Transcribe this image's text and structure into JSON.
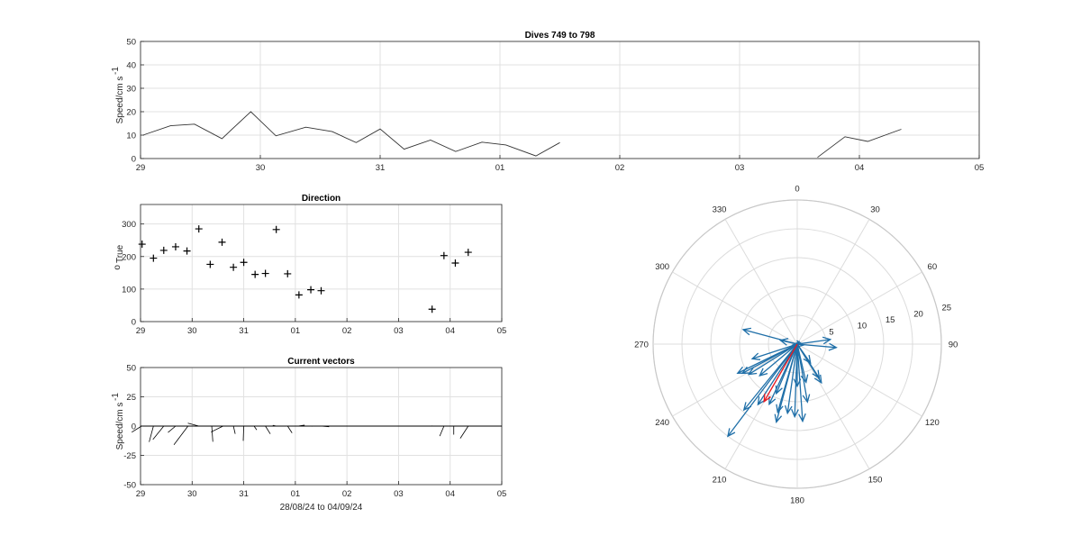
{
  "chart_data": [
    {
      "id": "speed",
      "type": "line",
      "title": "Dives 749 to 798",
      "ylabel": "Speed/cm s",
      "ylabel_sup": "-1",
      "xlabel": "",
      "xlim": [
        0,
        7
      ],
      "ylim": [
        0,
        50
      ],
      "yticks": [
        0,
        10,
        20,
        30,
        40,
        50
      ],
      "x_tick_labels": [
        "29",
        "30",
        "31",
        "01",
        "02",
        "03",
        "04",
        "05"
      ],
      "grid": true,
      "series": [
        {
          "color": "#333333",
          "points": [
            [
              0.02,
              10
            ],
            [
              0.25,
              14
            ],
            [
              0.45,
              14.7
            ],
            [
              0.68,
              8.5
            ],
            [
              0.92,
              20
            ],
            [
              1.13,
              9.7
            ],
            [
              1.38,
              13.4
            ],
            [
              1.6,
              11.5
            ],
            [
              1.8,
              6.8
            ],
            [
              2.0,
              12.6
            ],
            [
              2.2,
              4
            ],
            [
              2.42,
              7.9
            ],
            [
              2.63,
              3
            ],
            [
              2.85,
              7
            ],
            [
              3.05,
              5.8
            ],
            [
              3.3,
              1.1
            ],
            [
              3.5,
              6.8
            ]
          ]
        },
        {
          "color": "#333333",
          "points": [
            [
              5.65,
              0.5
            ],
            [
              5.88,
              9.3
            ],
            [
              6.07,
              7.3
            ],
            [
              6.35,
              12.5
            ]
          ]
        }
      ]
    },
    {
      "id": "direction",
      "type": "scatter",
      "title": "Direction",
      "ylabel": "True",
      "ylabel_prefix": "o",
      "xlabel": "",
      "xlim": [
        0,
        7
      ],
      "ylim": [
        0,
        360
      ],
      "yticks": [
        0,
        100,
        200,
        300
      ],
      "x_tick_labels": [
        "29",
        "30",
        "31",
        "01",
        "02",
        "03",
        "04",
        "05"
      ],
      "grid": true,
      "marker": "+",
      "points": [
        [
          0.03,
          238
        ],
        [
          0.25,
          195
        ],
        [
          0.45,
          219
        ],
        [
          0.68,
          230
        ],
        [
          0.9,
          217
        ],
        [
          1.13,
          285
        ],
        [
          1.35,
          176
        ],
        [
          1.58,
          244
        ],
        [
          1.8,
          167
        ],
        [
          2.0,
          182
        ],
        [
          2.22,
          145
        ],
        [
          2.42,
          148
        ],
        [
          2.63,
          283
        ],
        [
          2.85,
          147
        ],
        [
          3.07,
          82
        ],
        [
          3.3,
          98
        ],
        [
          3.5,
          95
        ],
        [
          5.65,
          38
        ],
        [
          5.88,
          203
        ],
        [
          6.1,
          180
        ],
        [
          6.35,
          213
        ]
      ]
    },
    {
      "id": "current_vectors",
      "type": "line",
      "title": "Current vectors",
      "ylabel": "Speed/cm s",
      "ylabel_sup": "-1",
      "xlabel": "28/08/24 to 04/09/24",
      "xlim": [
        0,
        7
      ],
      "ylim": [
        -50,
        50
      ],
      "yticks": [
        -50,
        -25,
        0,
        25,
        50
      ],
      "x_tick_labels": [
        "29",
        "30",
        "31",
        "01",
        "02",
        "03",
        "04",
        "05"
      ],
      "grid": true,
      "vectors": [
        [
          0.02,
          9.9,
          238
        ],
        [
          0.25,
          14,
          195
        ],
        [
          0.45,
          14.7,
          219
        ],
        [
          0.68,
          8.5,
          230
        ],
        [
          0.92,
          20,
          217
        ],
        [
          1.13,
          9.7,
          285
        ],
        [
          1.38,
          13.4,
          176
        ],
        [
          1.6,
          11.5,
          244
        ],
        [
          1.8,
          6.8,
          167
        ],
        [
          2.0,
          12.6,
          182
        ],
        [
          2.2,
          4,
          145
        ],
        [
          2.42,
          7.9,
          148
        ],
        [
          2.63,
          3,
          283
        ],
        [
          2.85,
          7,
          147
        ],
        [
          3.05,
          5.8,
          82
        ],
        [
          3.3,
          1.1,
          98
        ],
        [
          3.5,
          6.8,
          95
        ],
        [
          5.65,
          0.5,
          38
        ],
        [
          5.88,
          9.3,
          203
        ],
        [
          6.07,
          7.3,
          180
        ],
        [
          6.35,
          12.5,
          213
        ]
      ]
    },
    {
      "id": "rose",
      "type": "polar",
      "rlim": [
        0,
        25
      ],
      "r_tick_labels": [
        "5",
        "10",
        "15",
        "20",
        "25"
      ],
      "theta_tick_labels": [
        "0",
        "30",
        "60",
        "90",
        "120",
        "150",
        "180",
        "210",
        "240",
        "270",
        "300",
        "330"
      ],
      "arrow_color": "#1f6fa8",
      "mean_color": "#e8191f",
      "arrows": [
        [
          9.9,
          238
        ],
        [
          14,
          195
        ],
        [
          14.7,
          219
        ],
        [
          8.5,
          230
        ],
        [
          20,
          217
        ],
        [
          9.7,
          285
        ],
        [
          13.4,
          176
        ],
        [
          11.5,
          244
        ],
        [
          6.8,
          167
        ],
        [
          12.6,
          182
        ],
        [
          4,
          145
        ],
        [
          7.9,
          148
        ],
        [
          3,
          283
        ],
        [
          7,
          147
        ],
        [
          5.8,
          82
        ],
        [
          1.1,
          98
        ],
        [
          6.8,
          95
        ],
        [
          0.5,
          38
        ],
        [
          9.3,
          203
        ],
        [
          7.3,
          180
        ],
        [
          12.5,
          213
        ],
        [
          10.8,
          242
        ],
        [
          8.2,
          252
        ],
        [
          12.1,
          188
        ],
        [
          10.2,
          170
        ],
        [
          12.3,
          196
        ],
        [
          11.5,
          205
        ]
      ],
      "mean_arrow": [
        11.5,
        210
      ]
    }
  ]
}
